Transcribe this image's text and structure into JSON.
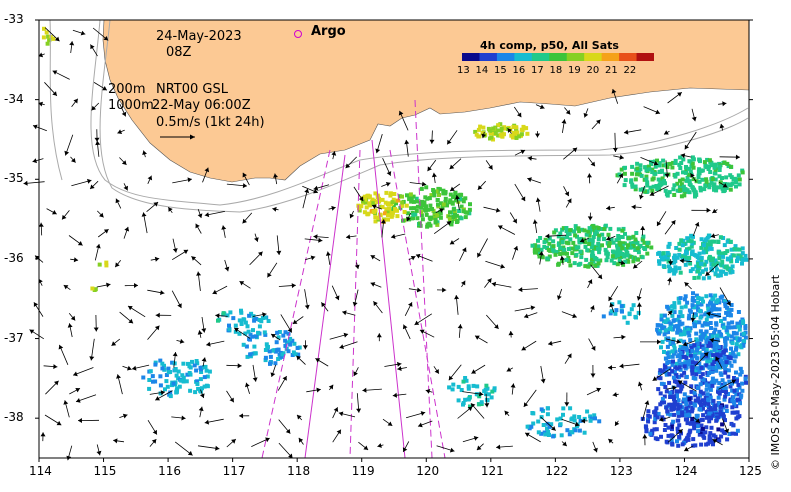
{
  "map": {
    "date": "24-May-2023",
    "time": "08Z",
    "depth_top": "200m",
    "depth_bottom": "1000m",
    "product": "NRT00 GSL",
    "altimetry_time": "22-May 06:00Z",
    "scale_label": "0.5m/s (1kt 24h)",
    "argo_label": "Argo",
    "credit": "© IMOS 26-May-2023 05:04 Hobart",
    "land_color": "#fcc994",
    "argo_color": "#d000d0",
    "track_color": "#cc33cc",
    "contour_color": "#aaaaaa"
  },
  "colorbar": {
    "title": "4h comp, p50, All Sats",
    "ticks": [
      "13",
      "14",
      "15",
      "16",
      "17",
      "18",
      "19",
      "20",
      "21",
      "22"
    ],
    "min": 12.5,
    "max": 23.0,
    "colors": [
      "#0a0a8c",
      "#1f3fd0",
      "#1c86e8",
      "#16bcd0",
      "#1fc98a",
      "#3cc43a",
      "#86d022",
      "#d8d81a",
      "#f5a21a",
      "#e8501a",
      "#b01010"
    ]
  },
  "axes": {
    "x_ticks": [
      "114",
      "115",
      "116",
      "117",
      "118",
      "119",
      "120",
      "121",
      "122",
      "123",
      "124",
      "125"
    ],
    "y_ticks": [
      "-33",
      "-34",
      "-35",
      "-36",
      "-37",
      "-38"
    ],
    "lon_range": [
      114,
      125
    ],
    "lat_range": [
      -38.5,
      -33
    ]
  }
}
